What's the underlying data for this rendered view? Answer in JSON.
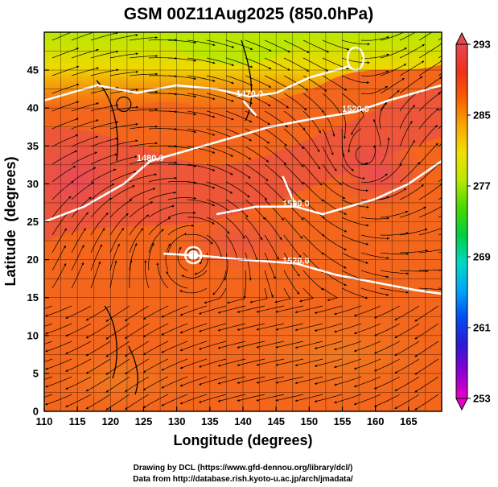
{
  "chart_data": {
    "type": "heatmap",
    "title": "GSM 00Z11Aug2025 (850.0hPa)",
    "xlabel": "Longitude (degrees)",
    "ylabel": "Latitude  (degrees)",
    "xlim": [
      110,
      170
    ],
    "ylim": [
      0,
      50
    ],
    "x_ticks": [
      110,
      115,
      120,
      125,
      130,
      135,
      140,
      145,
      150,
      155,
      160,
      165
    ],
    "y_ticks": [
      0,
      5,
      10,
      15,
      20,
      25,
      30,
      35,
      40,
      45
    ],
    "grid": true,
    "colorbar": {
      "min": 253,
      "max": 293,
      "ticks": [
        253,
        261,
        269,
        277,
        285,
        293
      ],
      "placement": "right",
      "colors": [
        "#e800c8",
        "#8a00d0",
        "#2a1ad8",
        "#0050f0",
        "#00a8f8",
        "#00d8c0",
        "#00d040",
        "#48d800",
        "#b8e800",
        "#f0e000",
        "#f8a800",
        "#f86000",
        "#f03018",
        "#e84850"
      ]
    },
    "contours": [
      {
        "label": "1470.0",
        "lon": 141,
        "lat": 41.5
      },
      {
        "label": "1480.0",
        "lon": 126,
        "lat": 33
      },
      {
        "label": "1500.0",
        "lon": 148,
        "lat": 27
      },
      {
        "label": "1520.0",
        "lon": 157,
        "lat": 39.5
      },
      {
        "label": "1520.0",
        "lon": 148,
        "lat": 19.5
      }
    ],
    "credits": [
      "Drawing by DCL (https://www.gfd-dennou.org/library/dcl/)",
      "Data from http://database.rish.kyoto-u.ac.jp/arch/jmadata/"
    ]
  }
}
